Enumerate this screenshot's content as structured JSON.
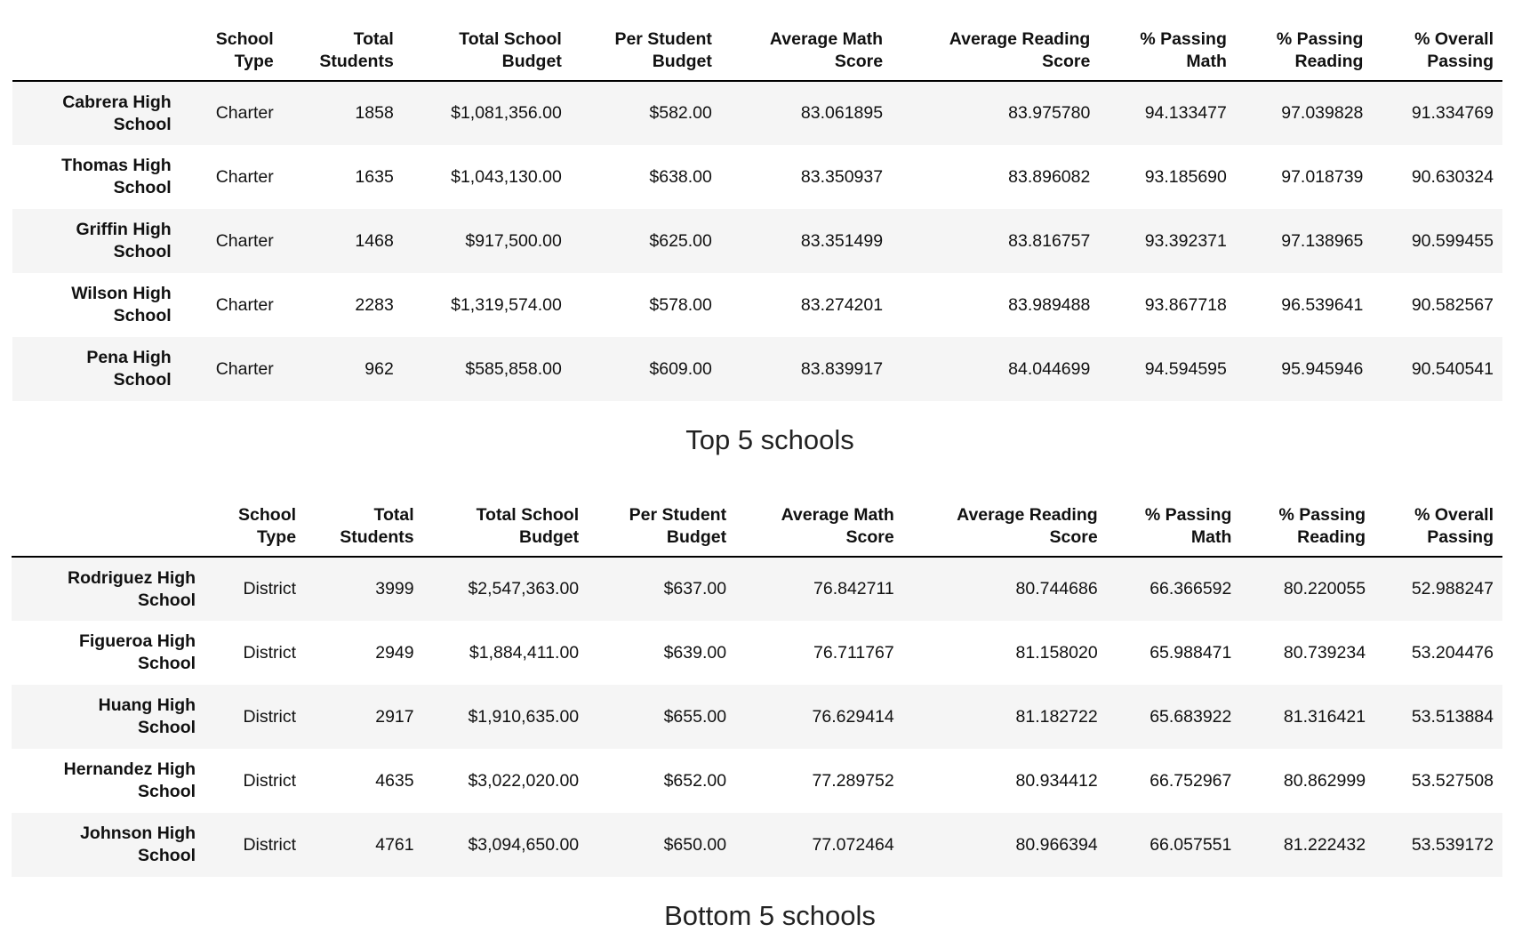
{
  "columns": [
    [
      "School",
      "Type"
    ],
    [
      "Total",
      "Students"
    ],
    [
      "Total School",
      "Budget"
    ],
    [
      "Per Student",
      "Budget"
    ],
    [
      "Average Math",
      "Score"
    ],
    [
      "Average Reading",
      "Score"
    ],
    [
      "% Passing",
      "Math"
    ],
    [
      "% Passing",
      "Reading"
    ],
    [
      "% Overall",
      "Passing"
    ]
  ],
  "top": {
    "caption": "Top 5 schools",
    "rows": [
      {
        "name": [
          "Cabrera High",
          "School"
        ],
        "cells": [
          "Charter",
          "1858",
          "$1,081,356.00",
          "$582.00",
          "83.061895",
          "83.975780",
          "94.133477",
          "97.039828",
          "91.334769"
        ]
      },
      {
        "name": [
          "Thomas High",
          "School"
        ],
        "cells": [
          "Charter",
          "1635",
          "$1,043,130.00",
          "$638.00",
          "83.350937",
          "83.896082",
          "93.185690",
          "97.018739",
          "90.630324"
        ]
      },
      {
        "name": [
          "Griffin High",
          "School"
        ],
        "cells": [
          "Charter",
          "1468",
          "$917,500.00",
          "$625.00",
          "83.351499",
          "83.816757",
          "93.392371",
          "97.138965",
          "90.599455"
        ]
      },
      {
        "name": [
          "Wilson High",
          "School"
        ],
        "cells": [
          "Charter",
          "2283",
          "$1,319,574.00",
          "$578.00",
          "83.274201",
          "83.989488",
          "93.867718",
          "96.539641",
          "90.582567"
        ]
      },
      {
        "name": [
          "Pena High",
          "School"
        ],
        "cells": [
          "Charter",
          "962",
          "$585,858.00",
          "$609.00",
          "83.839917",
          "84.044699",
          "94.594595",
          "95.945946",
          "90.540541"
        ]
      }
    ]
  },
  "bottom": {
    "caption": "Bottom 5 schools",
    "rows": [
      {
        "name": [
          "Rodriguez High",
          "School"
        ],
        "cells": [
          "District",
          "3999",
          "$2,547,363.00",
          "$637.00",
          "76.842711",
          "80.744686",
          "66.366592",
          "80.220055",
          "52.988247"
        ]
      },
      {
        "name": [
          "Figueroa High",
          "School"
        ],
        "cells": [
          "District",
          "2949",
          "$1,884,411.00",
          "$639.00",
          "76.711767",
          "81.158020",
          "65.988471",
          "80.739234",
          "53.204476"
        ]
      },
      {
        "name": [
          "Huang High",
          "School"
        ],
        "cells": [
          "District",
          "2917",
          "$1,910,635.00",
          "$655.00",
          "76.629414",
          "81.182722",
          "65.683922",
          "81.316421",
          "53.513884"
        ]
      },
      {
        "name": [
          "Hernandez High",
          "School"
        ],
        "cells": [
          "District",
          "4635",
          "$3,022,020.00",
          "$652.00",
          "77.289752",
          "80.934412",
          "66.752967",
          "80.862999",
          "53.527508"
        ]
      },
      {
        "name": [
          "Johnson High",
          "School"
        ],
        "cells": [
          "District",
          "4761",
          "$3,094,650.00",
          "$650.00",
          "77.072464",
          "80.966394",
          "66.057551",
          "81.222432",
          "53.539172"
        ]
      }
    ]
  }
}
